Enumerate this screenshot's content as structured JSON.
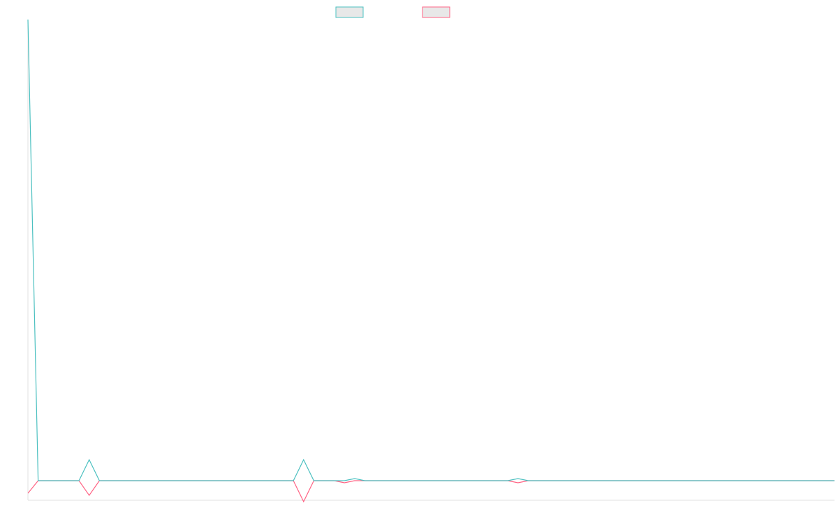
{
  "chart_data": {
    "type": "line",
    "title": "",
    "xlabel": "",
    "ylabel": "",
    "grid": false,
    "legend_position": "top-center",
    "x_count": 80,
    "ylim": [
      -1,
      22
    ],
    "colors": {
      "series_1": "#4bc0c0",
      "series_2": "#ff6384",
      "legend_fill": "#e8e8e8",
      "axis": "#e0e0e0"
    },
    "series": [
      {
        "color_key": "series_1",
        "values": [
          22,
          0,
          0,
          0,
          0,
          0,
          1,
          0,
          0,
          0,
          0,
          0,
          0,
          0,
          0,
          0,
          0,
          0,
          0,
          0,
          0,
          0,
          0,
          0,
          0,
          0,
          0,
          1,
          0,
          0,
          0,
          0,
          0.1,
          0,
          0,
          0,
          0,
          0,
          0,
          0,
          0,
          0,
          0,
          0,
          0,
          0,
          0,
          0,
          0.1,
          0,
          0,
          0,
          0,
          0,
          0,
          0,
          0,
          0,
          0,
          0,
          0,
          0,
          0,
          0,
          0,
          0,
          0,
          0,
          0,
          0,
          0,
          0,
          0,
          0,
          0,
          0,
          0,
          0,
          0,
          0
        ]
      },
      {
        "color_key": "series_2",
        "values": [
          -0.6,
          0,
          0,
          0,
          0,
          0,
          -0.7,
          0,
          0,
          0,
          0,
          0,
          0,
          0,
          0,
          0,
          0,
          0,
          0,
          0,
          0,
          0,
          0,
          0,
          0,
          0,
          0,
          -1,
          0,
          0,
          0,
          -0.1,
          0,
          0,
          0,
          0,
          0,
          0,
          0,
          0,
          0,
          0,
          0,
          0,
          0,
          0,
          0,
          0,
          -0.1,
          0,
          0,
          0,
          0,
          0,
          0,
          0,
          0,
          0,
          0,
          0,
          0,
          0,
          0,
          0,
          0,
          0,
          0,
          0,
          0,
          0,
          0,
          0,
          0,
          0,
          0,
          0,
          0,
          0,
          0,
          0
        ]
      }
    ]
  }
}
